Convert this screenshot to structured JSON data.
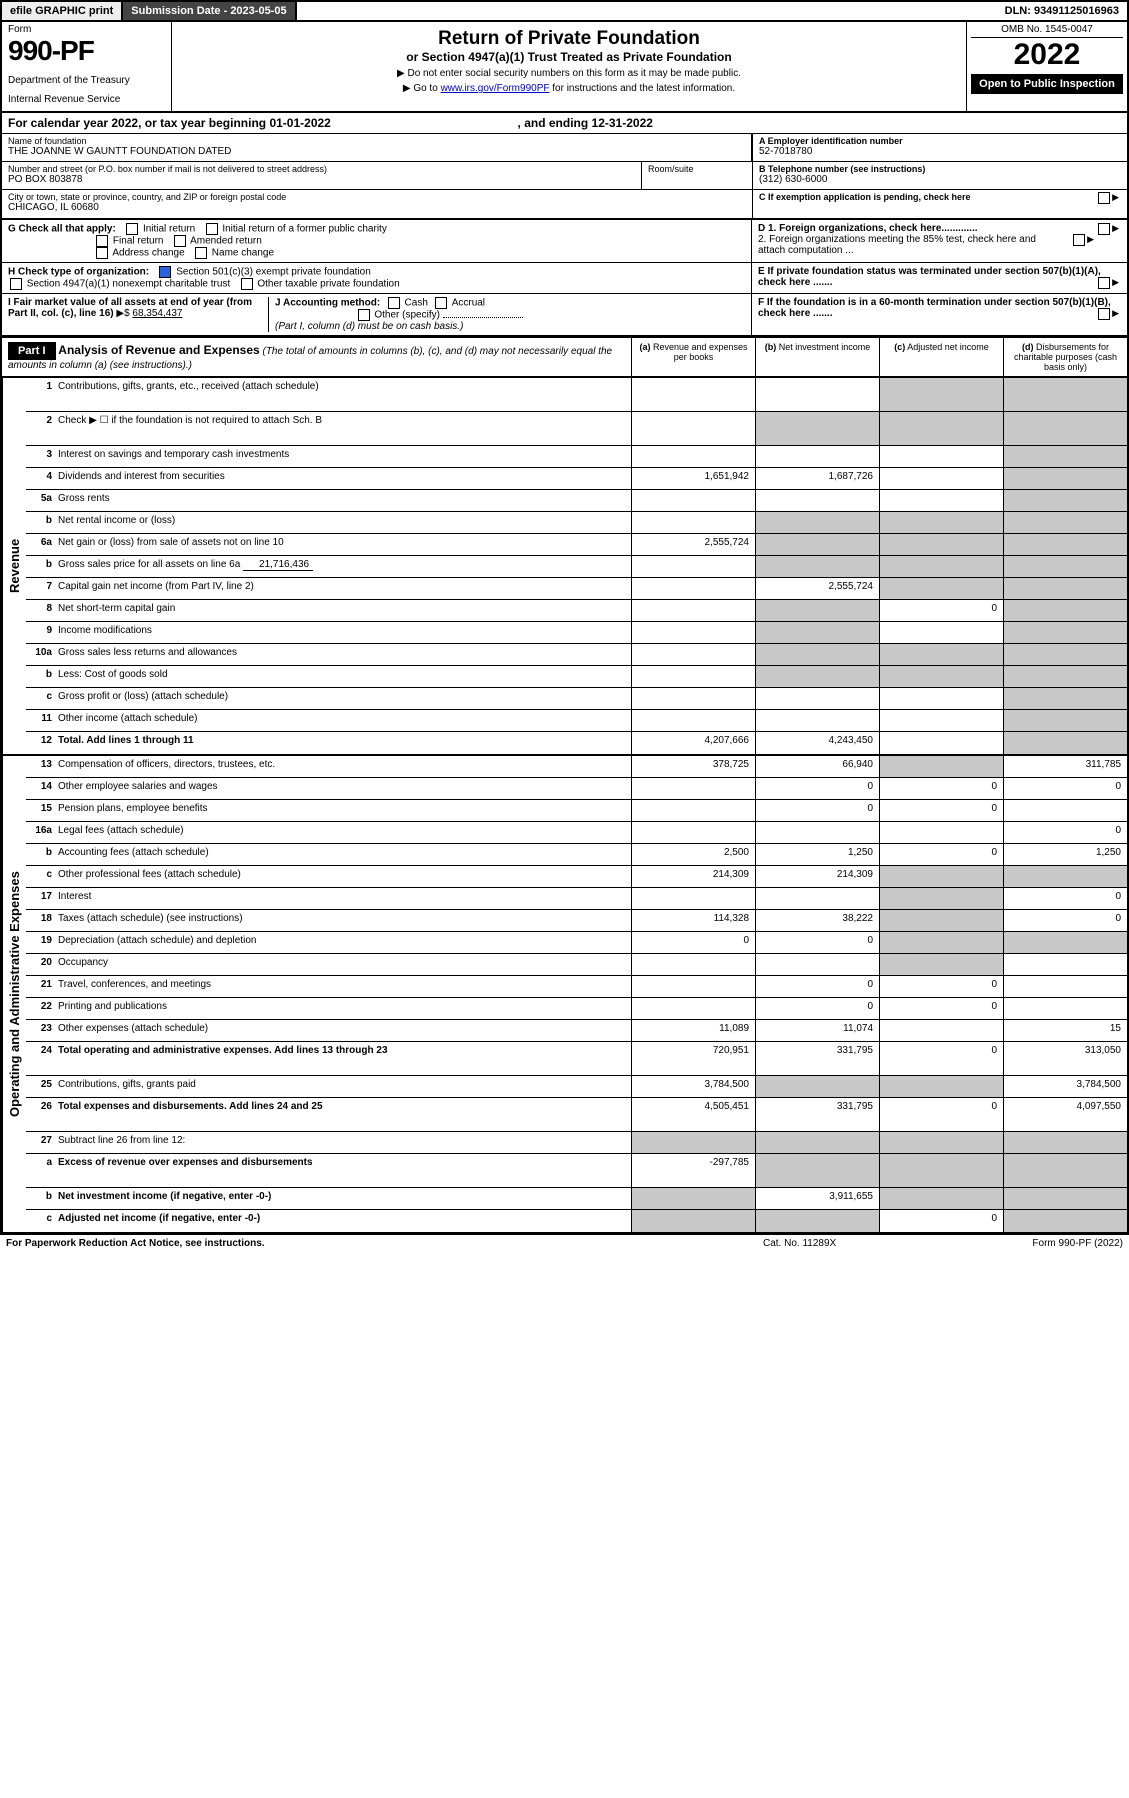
{
  "topbar": {
    "efile": "efile GRAPHIC print",
    "subdate_label": "Submission Date - 2023-05-05",
    "dln": "DLN: 93491125016963"
  },
  "header": {
    "form_label": "Form",
    "form_number": "990-PF",
    "dept1": "Department of the Treasury",
    "dept2": "Internal Revenue Service",
    "title": "Return of Private Foundation",
    "subtitle": "or Section 4947(a)(1) Trust Treated as Private Foundation",
    "instr1": "▶ Do not enter social security numbers on this form as it may be made public.",
    "instr2_pre": "▶ Go to ",
    "instr2_link": "www.irs.gov/Form990PF",
    "instr2_post": " for instructions and the latest information.",
    "omb": "OMB No. 1545-0047",
    "year": "2022",
    "open": "Open to Public Inspection"
  },
  "calendar": {
    "text_pre": "For calendar year 2022, or tax year beginning ",
    "begin": "01-01-2022",
    "mid": " , and ending ",
    "end": "12-31-2022"
  },
  "info": {
    "name_label": "Name of foundation",
    "name": "THE JOANNE W GAUNTT FOUNDATION DATED",
    "addr_label": "Number and street (or P.O. box number if mail is not delivered to street address)",
    "addr": "PO BOX 803878",
    "room_label": "Room/suite",
    "city_label": "City or town, state or province, country, and ZIP or foreign postal code",
    "city": "CHICAGO, IL  60680",
    "a_label": "A Employer identification number",
    "a_val": "52-7018780",
    "b_label": "B Telephone number (see instructions)",
    "b_val": "(312) 630-6000",
    "c_label": "C If exemption application is pending, check here",
    "d1": "D 1. Foreign organizations, check here.............",
    "d2": "2. Foreign organizations meeting the 85% test, check here and attach computation ...",
    "e": "E  If private foundation status was terminated under section 507(b)(1)(A), check here .......",
    "f": "F  If the foundation is in a 60-month termination under section 507(b)(1)(B), check here ......."
  },
  "checks": {
    "g_label": "G Check all that apply:",
    "g_opts": [
      "Initial return",
      "Initial return of a former public charity",
      "Final return",
      "Amended return",
      "Address change",
      "Name change"
    ],
    "h_label": "H Check type of organization:",
    "h1": "Section 501(c)(3) exempt private foundation",
    "h2": "Section 4947(a)(1) nonexempt charitable trust",
    "h3": "Other taxable private foundation",
    "i_label": "I Fair market value of all assets at end of year (from Part II, col. (c), line 16)",
    "i_val": "68,354,437",
    "j_label": "J Accounting method:",
    "j_cash": "Cash",
    "j_accrual": "Accrual",
    "j_other": "Other (specify)",
    "j_note": "(Part I, column (d) must be on cash basis.)"
  },
  "part1": {
    "label": "Part I",
    "title": "Analysis of Revenue and Expenses",
    "note": " (The total of amounts in columns (b), (c), and (d) may not necessarily equal the amounts in column (a) (see instructions).)",
    "cols": {
      "a": "(a)  Revenue and expenses per books",
      "b": "(b)  Net investment income",
      "c": "(c)  Adjusted net income",
      "d": "(d)  Disbursements for charitable purposes (cash basis only)"
    }
  },
  "sidelabels": {
    "rev": "Revenue",
    "exp": "Operating and Administrative Expenses"
  },
  "rows": {
    "r1": {
      "n": "1",
      "d": "Contributions, gifts, grants, etc., received (attach schedule)"
    },
    "r2": {
      "n": "2",
      "d": "Check ▶ ☐ if the foundation is not required to attach Sch. B"
    },
    "r3": {
      "n": "3",
      "d": "Interest on savings and temporary cash investments"
    },
    "r4": {
      "n": "4",
      "d": "Dividends and interest from securities",
      "a": "1,651,942",
      "b": "1,687,726"
    },
    "r5a": {
      "n": "5a",
      "d": "Gross rents"
    },
    "r5b": {
      "n": "b",
      "d": "Net rental income or (loss)"
    },
    "r6a": {
      "n": "6a",
      "d": "Net gain or (loss) from sale of assets not on line 10",
      "a": "2,555,724"
    },
    "r6b": {
      "n": "b",
      "d": "Gross sales price for all assets on line 6a",
      "inline": "21,716,436"
    },
    "r7": {
      "n": "7",
      "d": "Capital gain net income (from Part IV, line 2)",
      "b": "2,555,724"
    },
    "r8": {
      "n": "8",
      "d": "Net short-term capital gain",
      "c": "0"
    },
    "r9": {
      "n": "9",
      "d": "Income modifications"
    },
    "r10a": {
      "n": "10a",
      "d": "Gross sales less returns and allowances"
    },
    "r10b": {
      "n": "b",
      "d": "Less: Cost of goods sold"
    },
    "r10c": {
      "n": "c",
      "d": "Gross profit or (loss) (attach schedule)"
    },
    "r11": {
      "n": "11",
      "d": "Other income (attach schedule)"
    },
    "r12": {
      "n": "12",
      "d": "Total. Add lines 1 through 11",
      "a": "4,207,666",
      "b": "4,243,450",
      "bold": true
    },
    "r13": {
      "n": "13",
      "d": "Compensation of officers, directors, trustees, etc.",
      "a": "378,725",
      "b": "66,940",
      "dd": "311,785"
    },
    "r14": {
      "n": "14",
      "d": "Other employee salaries and wages",
      "b": "0",
      "c": "0",
      "dd": "0"
    },
    "r15": {
      "n": "15",
      "d": "Pension plans, employee benefits",
      "b": "0",
      "c": "0"
    },
    "r16a": {
      "n": "16a",
      "d": "Legal fees (attach schedule)",
      "dd": "0"
    },
    "r16b": {
      "n": "b",
      "d": "Accounting fees (attach schedule)",
      "a": "2,500",
      "b": "1,250",
      "c": "0",
      "dd": "1,250"
    },
    "r16c": {
      "n": "c",
      "d": "Other professional fees (attach schedule)",
      "a": "214,309",
      "b": "214,309"
    },
    "r17": {
      "n": "17",
      "d": "Interest",
      "dd": "0"
    },
    "r18": {
      "n": "18",
      "d": "Taxes (attach schedule) (see instructions)",
      "a": "114,328",
      "b": "38,222",
      "dd": "0"
    },
    "r19": {
      "n": "19",
      "d": "Depreciation (attach schedule) and depletion",
      "a": "0",
      "b": "0"
    },
    "r20": {
      "n": "20",
      "d": "Occupancy"
    },
    "r21": {
      "n": "21",
      "d": "Travel, conferences, and meetings",
      "b": "0",
      "c": "0"
    },
    "r22": {
      "n": "22",
      "d": "Printing and publications",
      "b": "0",
      "c": "0"
    },
    "r23": {
      "n": "23",
      "d": "Other expenses (attach schedule)",
      "a": "11,089",
      "b": "11,074",
      "dd": "15"
    },
    "r24": {
      "n": "24",
      "d": "Total operating and administrative expenses. Add lines 13 through 23",
      "a": "720,951",
      "b": "331,795",
      "c": "0",
      "dd": "313,050",
      "bold": true
    },
    "r25": {
      "n": "25",
      "d": "Contributions, gifts, grants paid",
      "a": "3,784,500",
      "dd": "3,784,500"
    },
    "r26": {
      "n": "26",
      "d": "Total expenses and disbursements. Add lines 24 and 25",
      "a": "4,505,451",
      "b": "331,795",
      "c": "0",
      "dd": "4,097,550",
      "bold": true
    },
    "r27": {
      "n": "27",
      "d": "Subtract line 26 from line 12:"
    },
    "r27a": {
      "n": "a",
      "d": "Excess of revenue over expenses and disbursements",
      "a": "-297,785",
      "bold": true
    },
    "r27b": {
      "n": "b",
      "d": "Net investment income (if negative, enter -0-)",
      "b": "3,911,655",
      "bold": true
    },
    "r27c": {
      "n": "c",
      "d": "Adjusted net income (if negative, enter -0-)",
      "c": "0",
      "bold": true
    }
  },
  "footer": {
    "left": "For Paperwork Reduction Act Notice, see instructions.",
    "center": "Cat. No. 11289X",
    "right": "Form 990-PF (2022)"
  },
  "shading": {
    "rev_d_shaded": [
      "r1",
      "r2",
      "r3",
      "r4",
      "r5a",
      "r5b",
      "r6a",
      "r6b",
      "r7",
      "r8",
      "r9",
      "r10a",
      "r10b",
      "r10c",
      "r11",
      "r12"
    ],
    "bc_shaded_rev": {
      "r1": [
        "c"
      ],
      "r2": [
        "b",
        "c"
      ],
      "r5b": [
        "b",
        "c"
      ],
      "r6a": [
        "b",
        "c"
      ],
      "r6b": [
        "b",
        "c"
      ],
      "r7": [
        "c"
      ],
      "r8": [
        "b"
      ],
      "r9": [
        "b"
      ],
      "r10a": [
        "b",
        "c"
      ],
      "r10b": [
        "b",
        "c"
      ]
    },
    "exp_shaded": {
      "r13": [
        "c"
      ],
      "r16c": [
        "c",
        "dd"
      ],
      "r17": [
        "c"
      ],
      "r18": [
        "c"
      ],
      "r19": [
        "c",
        "dd"
      ],
      "r20": [
        "c"
      ],
      "r25": [
        "b",
        "c"
      ],
      "r27": [
        "a",
        "b",
        "c",
        "dd"
      ],
      "r27a": [
        "b",
        "c",
        "dd"
      ],
      "r27b": [
        "a",
        "c",
        "dd"
      ],
      "r27c": [
        "a",
        "b",
        "dd"
      ]
    }
  }
}
